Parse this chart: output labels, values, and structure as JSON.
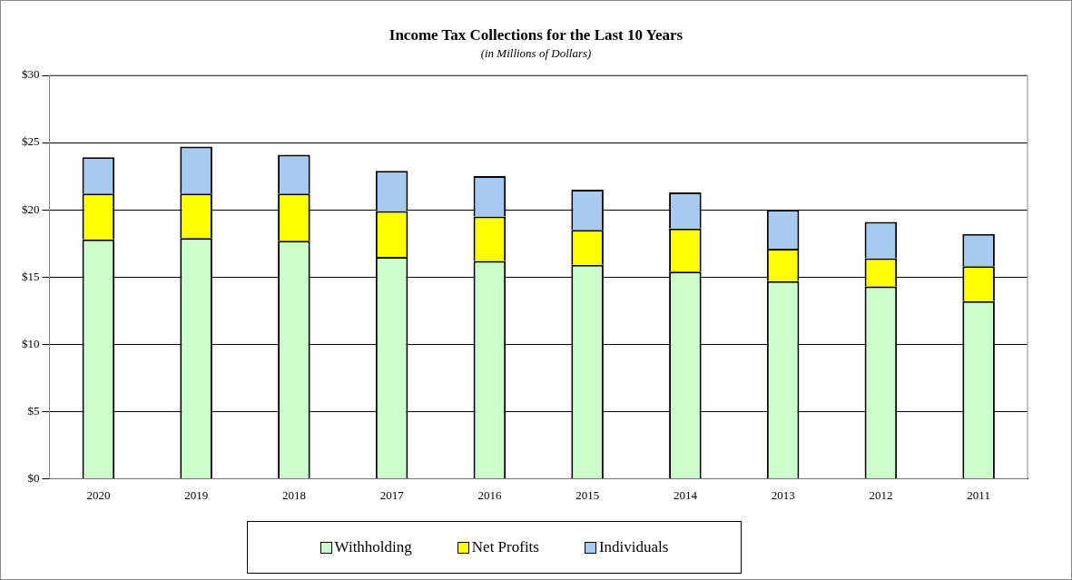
{
  "chart_data": {
    "type": "bar",
    "title": "Income Tax Collections for the Last 10 Years",
    "subtitle": "(in Millions of Dollars)",
    "categories": [
      "2020",
      "2019",
      "2018",
      "2017",
      "2016",
      "2015",
      "2014",
      "2013",
      "2012",
      "2011"
    ],
    "stacked": true,
    "series": [
      {
        "name": "Withholding",
        "color": "#ccffcc",
        "values": [
          17.8,
          17.9,
          17.7,
          16.5,
          16.2,
          15.9,
          15.4,
          14.7,
          14.3,
          13.2
        ]
      },
      {
        "name": "Net Profits",
        "color": "#ffff00",
        "values": [
          3.4,
          3.3,
          3.5,
          3.4,
          3.3,
          2.6,
          3.2,
          2.4,
          2.1,
          2.6
        ]
      },
      {
        "name": "Individuals",
        "color": "#a6caf0",
        "values": [
          2.7,
          3.5,
          2.9,
          3.0,
          3.0,
          3.0,
          2.7,
          2.9,
          2.7,
          2.4
        ]
      }
    ],
    "ylim": [
      0,
      30
    ],
    "yticks": [
      {
        "value": 0,
        "label": "$0"
      },
      {
        "value": 5,
        "label": "$5"
      },
      {
        "value": 10,
        "label": "$10"
      },
      {
        "value": 15,
        "label": "$15"
      },
      {
        "value": 20,
        "label": "$20"
      },
      {
        "value": 25,
        "label": "$25"
      },
      {
        "value": 30,
        "label": "$30"
      }
    ],
    "grid": "y",
    "legend": "bottom"
  }
}
